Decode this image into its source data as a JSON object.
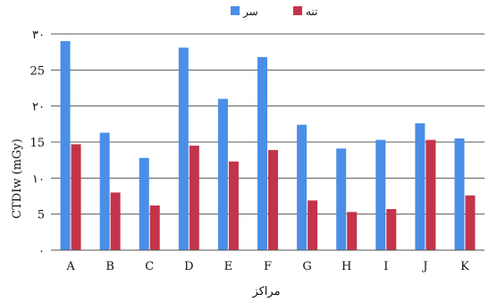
{
  "chart_data": {
    "type": "bar",
    "categories": [
      "A",
      "B",
      "C",
      "D",
      "E",
      "F",
      "G",
      "H",
      "I",
      "J",
      "K"
    ],
    "series": [
      {
        "name": "سر",
        "color": "#4a8ee8",
        "values": [
          29,
          16.3,
          12.8,
          28.1,
          21,
          26.8,
          17.4,
          14.1,
          15.3,
          17.6,
          15.5
        ]
      },
      {
        "name": "تنه",
        "color": "#c3344a",
        "values": [
          14.7,
          8,
          6.2,
          14.5,
          12.3,
          13.9,
          6.9,
          5.3,
          5.7,
          15.3,
          7.6
        ]
      }
    ],
    "ylabel": "CTDIw (mGy)",
    "xlabel": "مراکز",
    "ylim": [
      0,
      30
    ],
    "yticks": [
      {
        "value": 0,
        "label": "۰"
      },
      {
        "value": 5,
        "label": "5"
      },
      {
        "value": 10,
        "label": "۱۰"
      },
      {
        "value": 15,
        "label": "15"
      },
      {
        "value": 20,
        "label": "۲۰"
      },
      {
        "value": 25,
        "label": "25"
      },
      {
        "value": 30,
        "label": "۳۰"
      }
    ],
    "grid": true,
    "legend_position": "top-center"
  }
}
